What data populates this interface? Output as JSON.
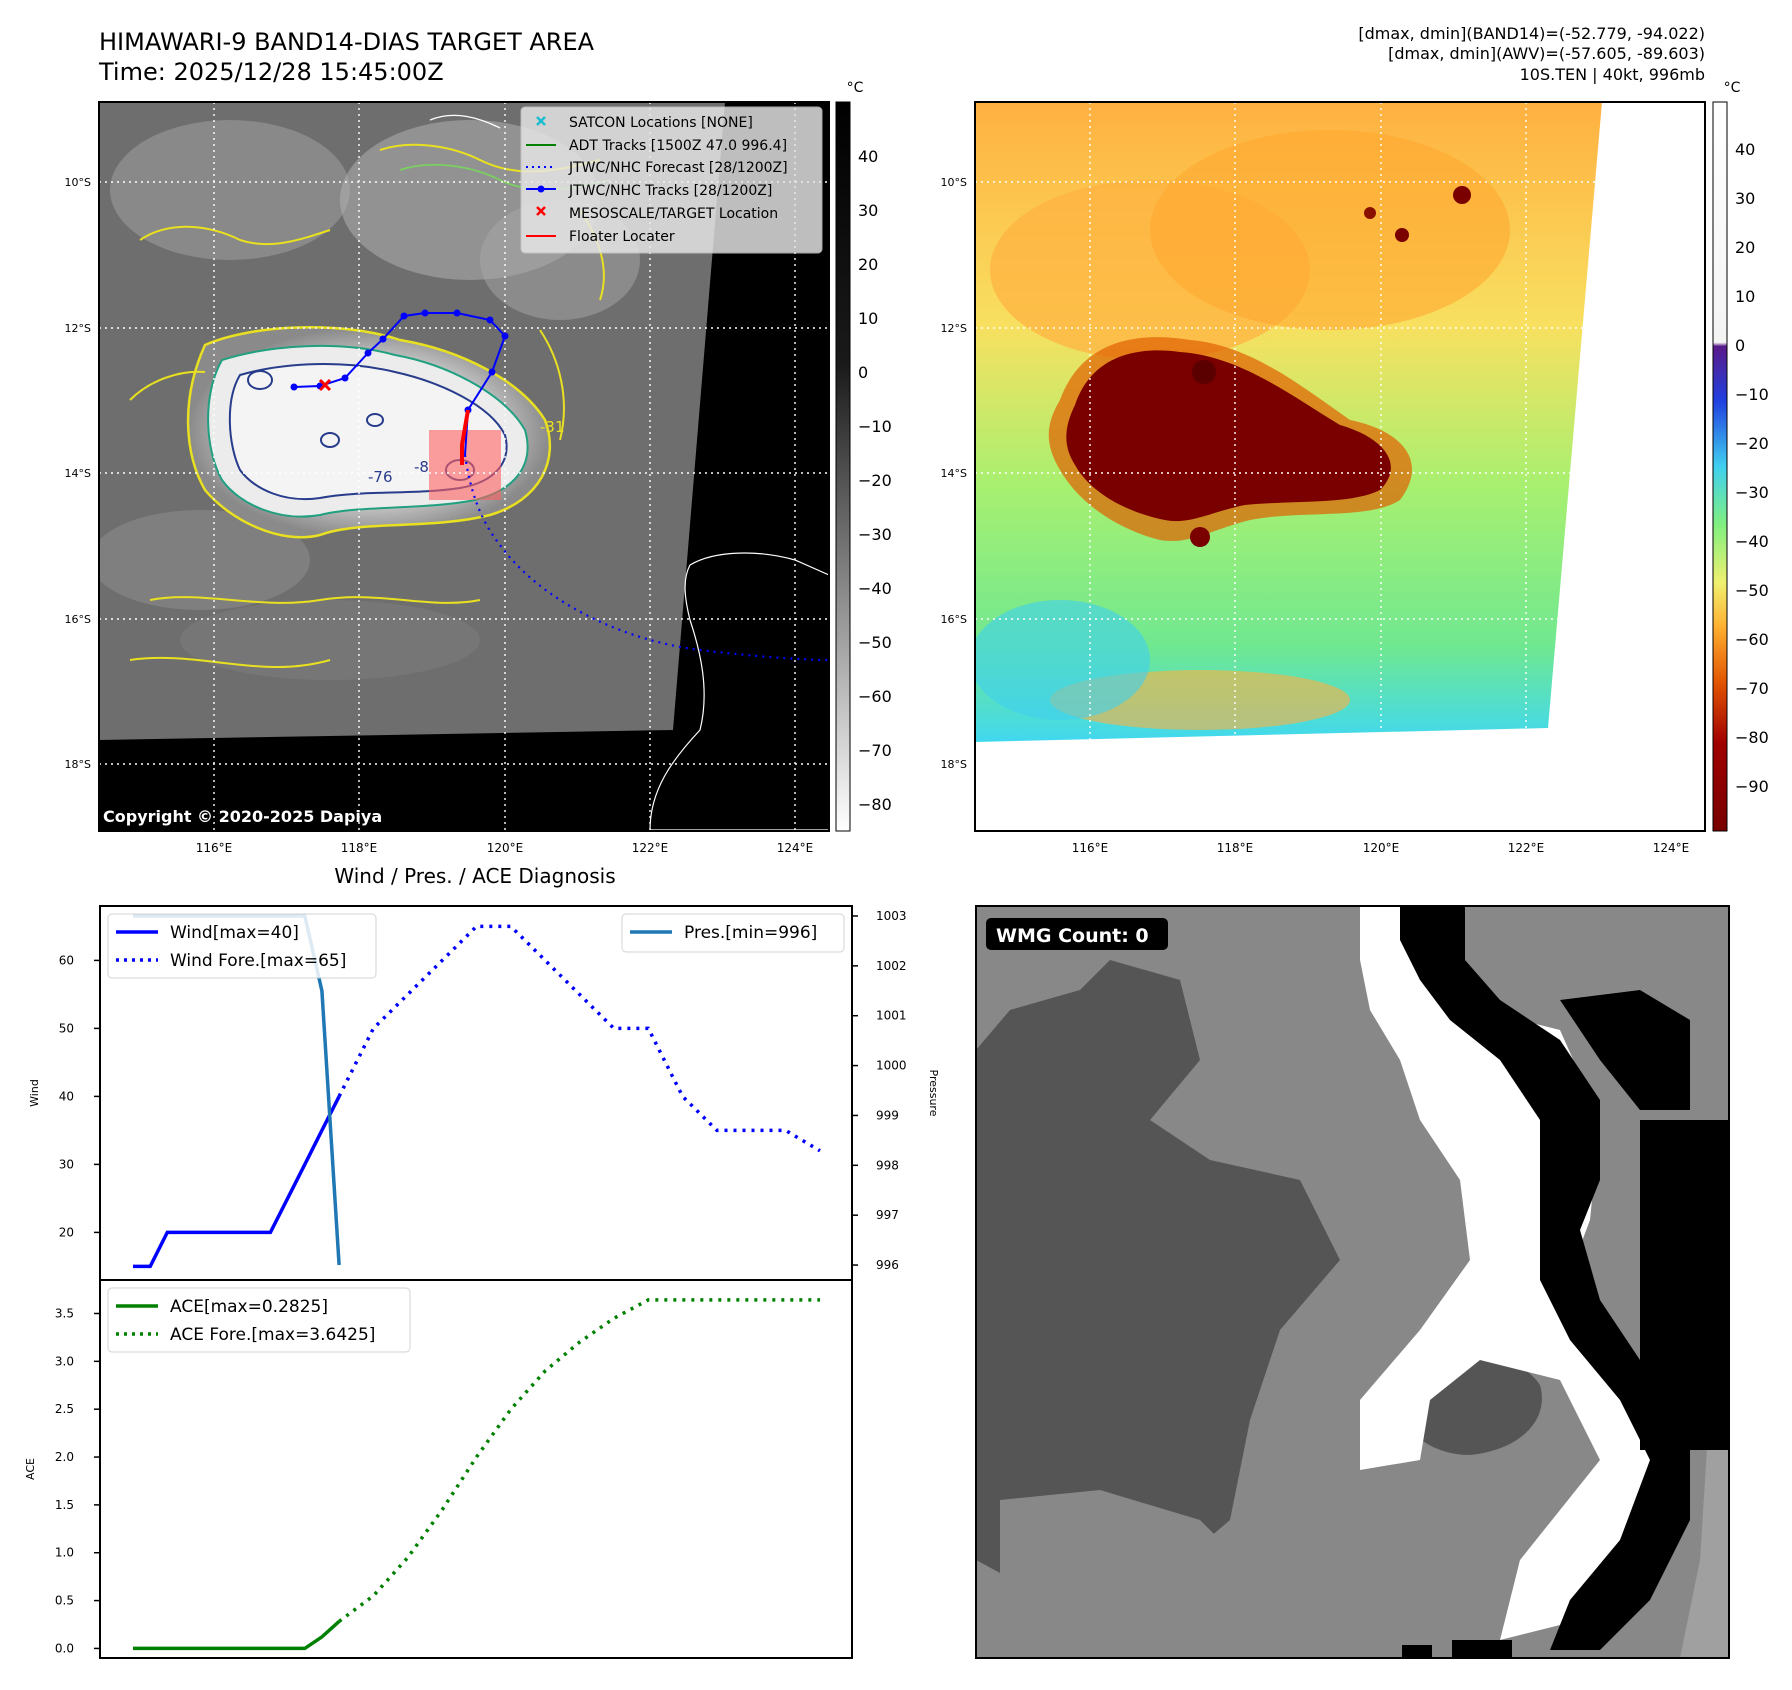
{
  "header": {
    "title_line1": "HIMAWARI-9 BAND14-DIAS TARGET AREA",
    "title_line2": "Time: 2025/12/28 15:45:00Z",
    "stats_line1": "[dmax, dmin](BAND14)=(-52.779, -94.022)",
    "stats_line2": "[dmax, dmin](AWV)=(-57.605, -89.603)",
    "stats_line3": "10S.TEN | 40kt, 996mb"
  },
  "ir_map": {
    "lat_labels": [
      "10°S",
      "12°S",
      "14°S",
      "16°S",
      "18°S"
    ],
    "lon_labels": [
      "116°E",
      "118°E",
      "120°E",
      "122°E",
      "124°E"
    ],
    "copyright": "Copyright © 2020-2025 Dapiya",
    "contour_labels": [
      "-31",
      "-76",
      "-8"
    ],
    "legend": [
      {
        "label": "SATCON Locations [NONE]",
        "color": "#17becf",
        "style": "x-marker"
      },
      {
        "label": "ADT Tracks [1500Z 47.0 996.4]",
        "color": "#008000",
        "style": "solid"
      },
      {
        "label": "JTWC/NHC Forecast [28/1200Z]",
        "color": "#0000ff",
        "style": "dotted"
      },
      {
        "label": "JTWC/NHC Tracks [28/1200Z]",
        "color": "#0000ff",
        "style": "line-dot"
      },
      {
        "label": "MESOSCALE/TARGET Location",
        "color": "#ff0000",
        "style": "x-marker"
      },
      {
        "label": "Floater Locater",
        "color": "#ff0000",
        "style": "solid"
      }
    ],
    "colorbar_unit": "°C",
    "colorbar_ticks": [
      "40",
      "30",
      "20",
      "10",
      "0",
      "−10",
      "−20",
      "−30",
      "−40",
      "−50",
      "−60",
      "−70",
      "−80"
    ]
  },
  "awv_map": {
    "lat_labels": [
      "10°S",
      "12°S",
      "14°S",
      "16°S",
      "18°S"
    ],
    "lon_labels": [
      "116°E",
      "118°E",
      "120°E",
      "122°E",
      "124°E"
    ],
    "colorbar_unit": "°C",
    "colorbar_ticks": [
      "40",
      "30",
      "20",
      "10",
      "0",
      "−10",
      "−20",
      "−30",
      "−40",
      "−50",
      "−60",
      "−70",
      "−80",
      "−90"
    ]
  },
  "wmg_panel": {
    "label": "WMG Count: 0",
    "colors": {
      "black": "#000000",
      "dark": "#555555",
      "mid": "#888888",
      "light": "#a0a0a0",
      "white": "#ffffff"
    }
  },
  "chart_data": [
    {
      "type": "line",
      "title": "Wind / Pres. / ACE Diagnosis",
      "xlabel": "",
      "ylabel": "Wind",
      "ylabel_right": "Pressure",
      "ylim": [
        13,
        68
      ],
      "ylim_right": [
        995.7,
        1003.2
      ],
      "yticks": [
        "20",
        "30",
        "40",
        "50",
        "60"
      ],
      "yticks_right": [
        "996",
        "997",
        "998",
        "999",
        "1000",
        "1001",
        "1002",
        "1003"
      ],
      "legend_left": [
        "Wind[max=40]",
        "Wind Fore.[max=65]"
      ],
      "legend_right": [
        "Pres.[min=996]"
      ],
      "series": [
        {
          "name": "Wind[max=40]",
          "axis": "left",
          "color": "#0000ff",
          "dash": "solid",
          "x": [
            0,
            1,
            2,
            3,
            4,
            5,
            6,
            7,
            8,
            9,
            10,
            11,
            12
          ],
          "values": [
            15,
            15,
            20,
            20,
            20,
            20,
            20,
            20,
            20,
            25,
            30,
            35,
            40
          ]
        },
        {
          "name": "Wind Fore.[max=65]",
          "axis": "left",
          "color": "#0000ff",
          "dash": "dotted",
          "x": [
            12,
            14,
            16,
            18,
            20,
            22,
            24,
            26,
            28,
            30,
            32,
            34,
            36,
            38,
            40
          ],
          "values": [
            40,
            50,
            55,
            60,
            65,
            65,
            60,
            55,
            50,
            50,
            40,
            35,
            35,
            35,
            32
          ]
        },
        {
          "name": "Pres.[min=996]",
          "axis": "right",
          "color": "#1f77b4",
          "dash": "solid",
          "x": [
            0,
            2,
            4,
            6,
            8,
            10,
            11,
            12
          ],
          "values": [
            1003,
            1003,
            1003,
            1003,
            1003,
            1003,
            1001.5,
            996
          ]
        }
      ]
    },
    {
      "type": "line",
      "xlabel": "",
      "ylabel": "ACE",
      "ylim": [
        -0.1,
        3.85
      ],
      "yticks": [
        "0.0",
        "0.5",
        "1.0",
        "1.5",
        "2.0",
        "2.5",
        "3.0",
        "3.5"
      ],
      "legend": [
        "ACE[max=0.2825]",
        "ACE Fore.[max=3.6425]"
      ],
      "series": [
        {
          "name": "ACE[max=0.2825]",
          "color": "#008000",
          "dash": "solid",
          "x": [
            0,
            2,
            4,
            6,
            8,
            10,
            11,
            12
          ],
          "values": [
            0,
            0,
            0,
            0,
            0,
            0,
            0.12,
            0.2825
          ]
        },
        {
          "name": "ACE Fore.[max=3.6425]",
          "color": "#008000",
          "dash": "dotted",
          "x": [
            12,
            14,
            16,
            18,
            20,
            22,
            24,
            26,
            28,
            30,
            32,
            34,
            36,
            38,
            40
          ],
          "values": [
            0.2825,
            0.55,
            0.95,
            1.45,
            2.0,
            2.5,
            2.9,
            3.2,
            3.45,
            3.6425,
            3.6425,
            3.6425,
            3.6425,
            3.6425,
            3.6425
          ]
        }
      ]
    }
  ]
}
